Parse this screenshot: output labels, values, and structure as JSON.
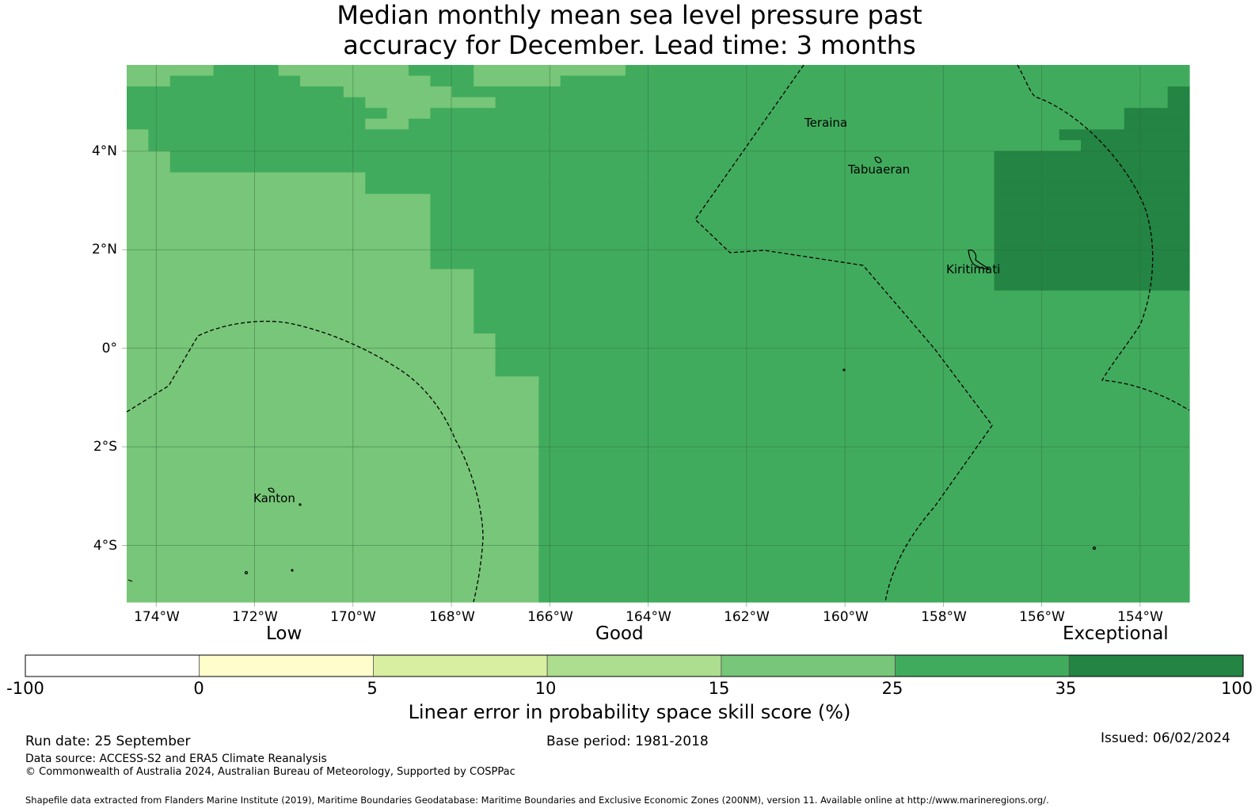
{
  "title": {
    "line1": "Median monthly mean sea level pressure past",
    "line2": "accuracy for December. Lead time: 3 months"
  },
  "map": {
    "lat_ticks": [
      "4°N",
      "2°N",
      "0°",
      "2°S",
      "4°S"
    ],
    "lon_ticks": [
      "174°W",
      "172°W",
      "170°W",
      "168°W",
      "166°W",
      "164°W",
      "162°W",
      "160°W",
      "158°W",
      "156°W",
      "154°W"
    ],
    "lon_range": [
      -174.6,
      -153.0
    ],
    "lat_range": [
      -5.15,
      5.75
    ],
    "places": [
      "Teraina",
      "Tabuaeran",
      "Kiritimati",
      "Kanton"
    ],
    "bin_colors": [
      "#ffffff",
      "#fffdcc",
      "#d8eea0",
      "#addd8e",
      "#78c679",
      "#41ab5d",
      "#238443"
    ],
    "grid_note": "cell values are colour-bin indices: 4 = 15-25, 5 = 25-35, 6 = 35-100",
    "grid_rows": [
      "4444555444444555444444455555555555555555555555555",
      "4455555544444455444455555555555555555555555555555",
      "5555555555444445555555555555555555555555555555556",
      "5555555555544444455555555555555555555555555555556",
      "5555555555554455555555555555555555555555555555666",
      "5555555555544555555555555555555555555555555555666",
      "4555555555555555555555555555555555555555555666666",
      "4555555555555555555555555555555555555555555566666",
      "4455555555555555555555555555555555555555666666666",
      "4455555555555555555555555555555555555555666666666",
      "4444444444455555555555555555555555555555666666666",
      "4444444444455555555555555555555555555555666666666",
      "4444444444444455555555555555555555555555666666666",
      "4444444444444455555555555555555555555555666666666",
      "4444444444444455555555555555555555555555666666666",
      "4444444444444455555555555555555555555555666666666",
      "4444444444444455555555555555555555555555666666666",
      "4444444444444455555555555555555555555555666666666",
      "4444444444444455555555555555555555555555666666666",
      "4444444444444444555555555555555555555555666666666",
      "4444444444444444555555555555555555555555666666666",
      "4444444444444444555555555555555555555555555555555",
      "4444444444444444555555555555555555555555555555555",
      "4444444444444444555555555555555555555555555555555",
      "4444444444444444555555555555555555555555555555555",
      "4444444444444444455555555555555555555555555555555",
      "4444444444444444455555555555555555555555555555555",
      "4444444444444444455555555555555555555555555555555",
      "4444444444444444455555555555555555555555555555555",
      "4444444444444444444555555555555555555555555555555",
      "4444444444444444444555555555555555555555555555555",
      "4444444444444444444555555555555555555555555555555",
      "4444444444444444444555555555555555555555555555555",
      "4444444444444444444555555555555555555555555555555",
      "4444444444444444444555555555555555555555555555555",
      "4444444444444444444555555555555555555555555555555",
      "4444444444444444444555555555555555555555555555555",
      "4444444444444444444555555555555555555555555555555",
      "4444444444444444444555555555555555555555555555555",
      "4444444444444444444555555555555555555555555555555",
      "4444444444444444444555555555555555555555555555555",
      "4444444444444444444555555555555555555555555555555",
      "4444444444444444444555555555555555555555555555555",
      "4444444444444444444555555555555555555555555555555",
      "4444444444444444444555555555555555555555555555555",
      "4444444444444444444555555555555555555555555555555",
      "4444444444444444444555555555555555555555555555555",
      "4444444444444444444555555555555555555555555555555",
      "4444444444444444444555555555555555555555555555555",
      "4444444444444444444555555555555555555555555555555"
    ]
  },
  "colorbar": {
    "categories": [
      "Low",
      "Good",
      "Exceptional"
    ],
    "ticks": [
      "-100",
      "0",
      "5",
      "10",
      "15",
      "25",
      "35",
      "100"
    ],
    "title": "Linear error in probability space skill score (%)"
  },
  "footer": {
    "run_date": "Run date: 25 September",
    "base_period": "Base period: 1981-2018",
    "issued": "Issued: 06/02/2024",
    "data_source": "Data source: ACCESS-S2 and ERA5 Climate Reanalysis",
    "copyright": "© Commonwealth of Australia 2024, Australian Bureau of Meteorology, Supported by COSPPac",
    "shapefile": "Shapefile data extracted from Flanders Marine Institute (2019), Maritime Boundaries Geodatabase: Maritime Boundaries and Exclusive Economic Zones (200NM), version 11. Available online at http://www.marineregions.org/."
  }
}
